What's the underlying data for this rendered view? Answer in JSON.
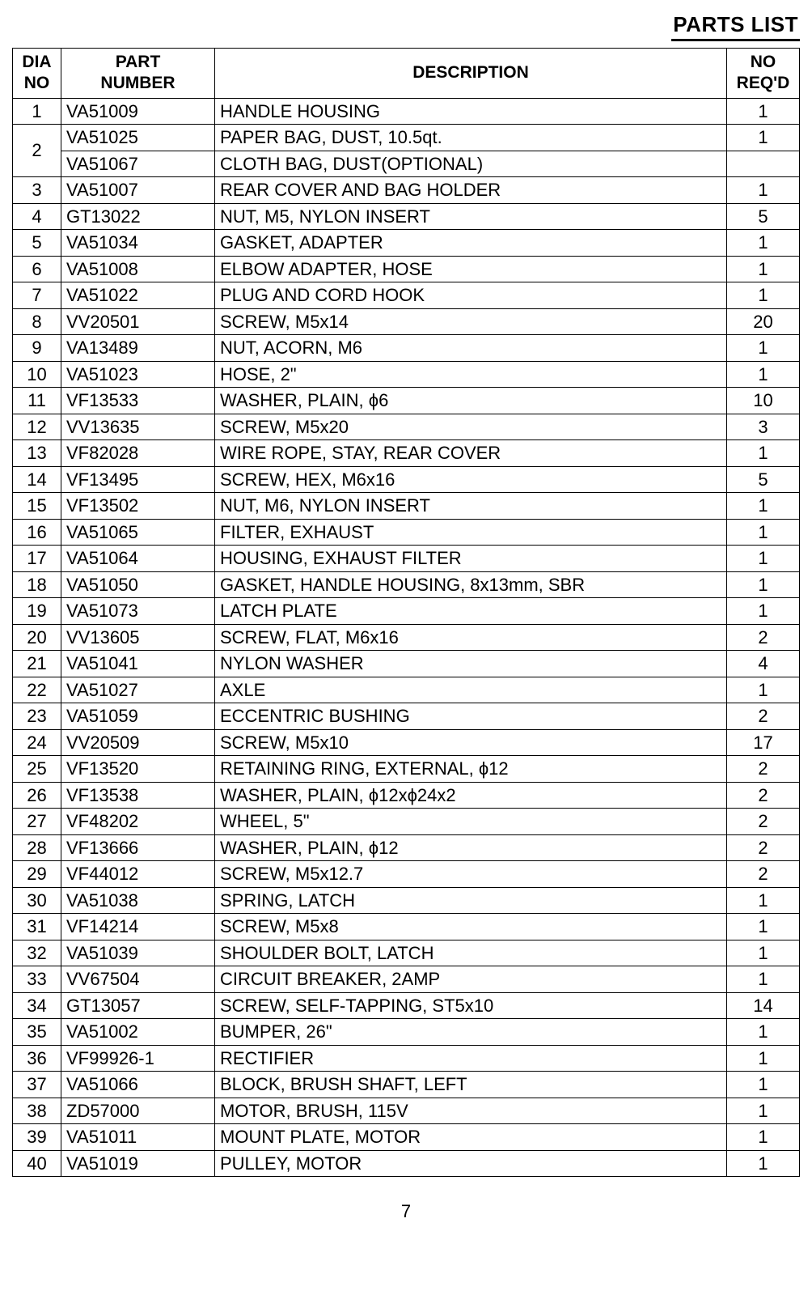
{
  "title": "PARTS LIST",
  "page_number": "7",
  "columns": {
    "dia_no_line1": "DIA",
    "dia_no_line2": "NO",
    "part_number_line1": "PART",
    "part_number_line2": "NUMBER",
    "description": "DESCRIPTION",
    "no_reqd_line1": "NO",
    "no_reqd_line2": "REQ'D"
  },
  "rows": [
    {
      "dia": "1",
      "part": "VA51009",
      "desc": "HANDLE HOUSING",
      "req": "1"
    },
    {
      "dia": "2",
      "dia_rowspan": 2,
      "part": "VA51025",
      "desc": "PAPER BAG, DUST, 10.5qt.",
      "req": "1"
    },
    {
      "dia": "",
      "part": "VA51067",
      "desc": "CLOTH BAG, DUST(OPTIONAL)",
      "req": ""
    },
    {
      "dia": "3",
      "part": "VA51007",
      "desc": "REAR COVER AND BAG HOLDER",
      "req": "1"
    },
    {
      "dia": "4",
      "part": "GT13022",
      "desc": "NUT, M5, NYLON INSERT",
      "req": "5"
    },
    {
      "dia": "5",
      "part": "VA51034",
      "desc": "GASKET, ADAPTER",
      "req": "1"
    },
    {
      "dia": "6",
      "part": "VA51008",
      "desc": "ELBOW ADAPTER, HOSE",
      "req": "1"
    },
    {
      "dia": "7",
      "part": "VA51022",
      "desc": "PLUG AND CORD HOOK",
      "req": "1"
    },
    {
      "dia": "8",
      "part": "VV20501",
      "desc": "SCREW, M5x14",
      "req": "20"
    },
    {
      "dia": "9",
      "part": "VA13489",
      "desc": "NUT, ACORN, M6",
      "req": "1"
    },
    {
      "dia": "10",
      "part": "VA51023",
      "desc": "HOSE, 2\"",
      "req": "1"
    },
    {
      "dia": "11",
      "part": "VF13533",
      "desc": "WASHER, PLAIN, ϕ6",
      "req": "10"
    },
    {
      "dia": "12",
      "part": "VV13635",
      "desc": "SCREW, M5x20",
      "req": "3"
    },
    {
      "dia": "13",
      "part": "VF82028",
      "desc": "WIRE ROPE, STAY, REAR COVER",
      "req": "1"
    },
    {
      "dia": "14",
      "part": "VF13495",
      "desc": "SCREW, HEX, M6x16",
      "req": "5"
    },
    {
      "dia": "15",
      "part": "VF13502",
      "desc": "NUT, M6, NYLON INSERT",
      "req": "1"
    },
    {
      "dia": "16",
      "part": "VA51065",
      "desc": "FILTER, EXHAUST",
      "req": "1"
    },
    {
      "dia": "17",
      "part": "VA51064",
      "desc": "HOUSING, EXHAUST FILTER",
      "req": "1"
    },
    {
      "dia": "18",
      "part": "VA51050",
      "desc": "GASKET, HANDLE HOUSING, 8x13mm, SBR",
      "req": "1"
    },
    {
      "dia": "19",
      "part": "VA51073",
      "desc": "LATCH PLATE",
      "req": "1"
    },
    {
      "dia": "20",
      "part": "VV13605",
      "desc": "SCREW, FLAT, M6x16",
      "req": "2"
    },
    {
      "dia": "21",
      "part": "VA51041",
      "desc": "NYLON WASHER",
      "req": "4"
    },
    {
      "dia": "22",
      "part": "VA51027",
      "desc": "AXLE",
      "req": "1"
    },
    {
      "dia": "23",
      "part": "VA51059",
      "desc": "ECCENTRIC BUSHING",
      "req": "2"
    },
    {
      "dia": "24",
      "part": "VV20509",
      "desc": "SCREW, M5x10",
      "req": "17"
    },
    {
      "dia": "25",
      "part": "VF13520",
      "desc": "RETAINING RING, EXTERNAL, ϕ12",
      "req": "2"
    },
    {
      "dia": "26",
      "part": "VF13538",
      "desc": "WASHER, PLAIN, ϕ12xϕ24x2",
      "req": "2"
    },
    {
      "dia": "27",
      "part": "VF48202",
      "desc": "WHEEL, 5\"",
      "req": "2"
    },
    {
      "dia": "28",
      "part": "VF13666",
      "desc": "WASHER, PLAIN, ϕ12",
      "req": "2"
    },
    {
      "dia": "29",
      "part": "VF44012",
      "desc": "SCREW, M5x12.7",
      "req": "2"
    },
    {
      "dia": "30",
      "part": "VA51038",
      "desc": "SPRING, LATCH",
      "req": "1"
    },
    {
      "dia": "31",
      "part": "VF14214",
      "desc": "SCREW, M5x8",
      "req": "1"
    },
    {
      "dia": "32",
      "part": "VA51039",
      "desc": "SHOULDER BOLT, LATCH",
      "req": "1"
    },
    {
      "dia": "33",
      "part": "VV67504",
      "desc": "CIRCUIT BREAKER, 2AMP",
      "req": "1"
    },
    {
      "dia": "34",
      "part": "GT13057",
      "desc": "SCREW, SELF-TAPPING, ST5x10",
      "req": "14"
    },
    {
      "dia": "35",
      "part": "VA51002",
      "desc": "BUMPER, 26\"",
      "req": "1"
    },
    {
      "dia": "36",
      "part": "VF99926-1",
      "desc": "RECTIFIER",
      "req": "1"
    },
    {
      "dia": "37",
      "part": "VA51066",
      "desc": "BLOCK, BRUSH SHAFT, LEFT",
      "req": "1"
    },
    {
      "dia": "38",
      "part": "ZD57000",
      "desc": "MOTOR, BRUSH, 115V",
      "req": "1"
    },
    {
      "dia": "39",
      "part": "VA51011",
      "desc": "MOUNT PLATE, MOTOR",
      "req": "1"
    },
    {
      "dia": "40",
      "part": "VA51019",
      "desc": "PULLEY, MOTOR",
      "req": "1"
    }
  ]
}
